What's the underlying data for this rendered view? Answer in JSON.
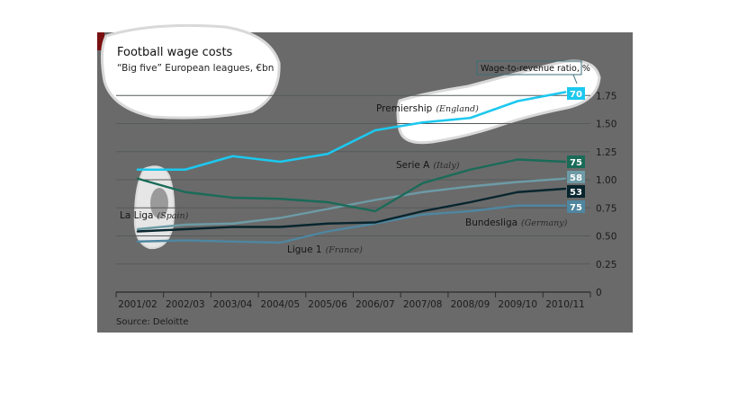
{
  "chart_data": {
    "type": "line",
    "title": "Football wage costs",
    "subtitle": "“Big five” European leagues, €bn",
    "source": "Source: Deloitte",
    "categories": [
      "2001/02",
      "2002/03",
      "2003/04",
      "2004/05",
      "2005/06",
      "2006/07",
      "2007/08",
      "2008/09",
      "2009/10",
      "2010/11"
    ],
    "ylim": [
      0,
      2.0
    ],
    "yticks": [
      "0",
      "0.25",
      "0.50",
      "0.75",
      "1.00",
      "1.25",
      "1.50",
      "1.75"
    ],
    "y_axis_side": "right",
    "grid": true,
    "ratio_legend": "Wage-to-revenue ratio, %",
    "series": [
      {
        "name": "Premiership",
        "country": "(England)",
        "color": "#1cc8ee",
        "ratio": "70",
        "values": [
          1.09,
          1.09,
          1.21,
          1.16,
          1.23,
          1.44,
          1.51,
          1.55,
          1.7,
          1.78
        ]
      },
      {
        "name": "Serie A",
        "country": "(Italy)",
        "color": "#1a6b58",
        "ratio": "75",
        "values": [
          1.01,
          0.89,
          0.84,
          0.83,
          0.8,
          0.72,
          0.97,
          1.09,
          1.18,
          1.16
        ]
      },
      {
        "name": "La Liga",
        "country": "(Spain)",
        "color": "#6d9ba6",
        "ratio": "58",
        "values": [
          0.56,
          0.6,
          0.61,
          0.66,
          0.74,
          0.82,
          0.89,
          0.94,
          0.98,
          1.01
        ]
      },
      {
        "name": "Bundesliga",
        "country": "(Germany)",
        "color": "#08252e",
        "ratio": "53",
        "values": [
          0.54,
          0.56,
          0.58,
          0.58,
          0.61,
          0.62,
          0.72,
          0.8,
          0.89,
          0.92
        ]
      },
      {
        "name": "Ligue 1",
        "country": "(France)",
        "color": "#4f86a0",
        "ratio": "75",
        "values": [
          0.45,
          0.46,
          0.45,
          0.44,
          0.54,
          0.61,
          0.69,
          0.72,
          0.77,
          0.77
        ]
      }
    ]
  }
}
